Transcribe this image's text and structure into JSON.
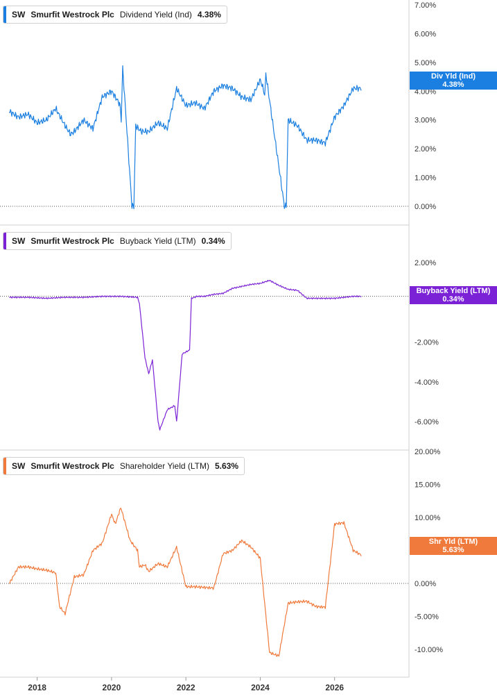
{
  "header": {
    "ticker": "SW",
    "company": "Smurfit Westrock Plc"
  },
  "x_axis": {
    "ticks": [
      "2018",
      "2020",
      "2022",
      "2024",
      "2026"
    ]
  },
  "panels": [
    {
      "metric": "Dividend Yield (Ind)",
      "value": "4.38%",
      "tag_label": "Div Yld (Ind)",
      "tag_value": "4.38%",
      "color": "#1a7fe0"
    },
    {
      "metric": "Buyback Yield (LTM)",
      "value": "0.34%",
      "tag_label": "Buyback Yield (LTM)",
      "tag_value": "0.34%",
      "color": "#7b22d6"
    },
    {
      "metric": "Shareholder Yield (LTM)",
      "value": "5.63%",
      "tag_label": "Shr Yld (LTM)",
      "tag_value": "5.63%",
      "color": "#f07a3c"
    }
  ],
  "chart_data": [
    {
      "type": "line",
      "series": [
        {
          "name": "Dividend Yield (Ind)"
        }
      ],
      "unit": "%",
      "ylim": [
        0,
        7
      ],
      "yticks": [
        "0.00%",
        "1.00%",
        "2.00%",
        "3.00%",
        "4.00%",
        "5.00%",
        "6.00%",
        "7.00%"
      ],
      "x": [
        2017.25,
        2017.5,
        2017.75,
        2018.0,
        2018.25,
        2018.5,
        2018.75,
        2018.9,
        2019.0,
        2019.25,
        2019.5,
        2019.75,
        2020.0,
        2020.2,
        2020.23,
        2020.26,
        2020.3,
        2020.55,
        2020.6,
        2020.65,
        2020.8,
        2021.0,
        2021.25,
        2021.5,
        2021.75,
        2022.0,
        2022.25,
        2022.5,
        2022.75,
        2023.0,
        2023.25,
        2023.5,
        2023.75,
        2024.0,
        2024.1,
        2024.12,
        2024.15,
        2024.65,
        2024.7,
        2024.75,
        2025.0,
        2025.25,
        2025.5,
        2025.75,
        2026.0,
        2026.25,
        2026.5,
        2026.75,
        2027.0,
        2027.25,
        2027.5,
        2027.75,
        2028.0,
        2028.25,
        2028.5,
        2028.75
      ],
      "y": [
        3.3,
        3.1,
        3.2,
        2.9,
        3.0,
        3.4,
        2.8,
        2.5,
        2.6,
        3.0,
        2.7,
        3.8,
        4.0,
        3.6,
        3.5,
        3.0,
        4.8,
        0.0,
        0.0,
        2.8,
        2.6,
        2.6,
        2.9,
        2.7,
        4.1,
        3.5,
        3.6,
        3.4,
        4.0,
        4.2,
        4.1,
        3.8,
        3.7,
        4.4,
        4.0,
        3.8,
        4.6,
        0.0,
        0.0,
        3.0,
        2.8,
        2.3,
        2.3,
        2.2,
        3.1,
        3.5,
        4.1,
        4.1,
        3.9,
        4.3,
        4.3,
        4.3,
        4.3,
        4.4,
        4.38,
        4.38
      ]
    },
    {
      "type": "line",
      "series": [
        {
          "name": "Buyback Yield (LTM)"
        }
      ],
      "unit": "%",
      "ylim": [
        -7.5,
        2.5
      ],
      "yticks": [
        "2.00%",
        "-2.00%",
        "-4.00%",
        "-6.00%"
      ],
      "x": [
        2017.25,
        2017.75,
        2018.25,
        2018.75,
        2019.25,
        2019.75,
        2020.25,
        2020.7,
        2020.75,
        2020.9,
        2021.0,
        2021.1,
        2021.25,
        2021.3,
        2021.5,
        2021.7,
        2021.75,
        2021.9,
        2022.0,
        2022.1,
        2022.15,
        2022.3,
        2022.5,
        2022.75,
        2023.0,
        2023.25,
        2023.5,
        2023.75,
        2024.0,
        2024.25,
        2024.5,
        2024.75,
        2025.0,
        2025.25,
        2025.5,
        2025.75,
        2026.0,
        2026.25,
        2026.5,
        2026.75,
        2027.0,
        2027.25,
        2027.5,
        2027.75,
        2028.0,
        2028.25,
        2028.5,
        2028.75
      ],
      "y": [
        0.25,
        0.25,
        0.2,
        0.25,
        0.25,
        0.3,
        0.3,
        0.25,
        -0.05,
        -2.8,
        -3.6,
        -2.9,
        -6.0,
        -6.4,
        -5.4,
        -5.2,
        -6.0,
        -2.6,
        -2.5,
        -2.4,
        0.2,
        0.3,
        0.3,
        0.4,
        0.45,
        0.7,
        0.8,
        0.9,
        0.95,
        1.1,
        0.85,
        0.65,
        0.6,
        0.2,
        0.2,
        0.2,
        0.2,
        0.25,
        0.3,
        0.3,
        0.35,
        0.34,
        0.34,
        0.34,
        0.34,
        0.34,
        0.34,
        0.34
      ]
    },
    {
      "type": "line",
      "series": [
        {
          "name": "Shareholder Yield (LTM)"
        }
      ],
      "unit": "%",
      "ylim": [
        -15,
        20
      ],
      "yticks": [
        "20.00%",
        "15.00%",
        "10.00%",
        "5.00%",
        "0.00%",
        "-5.00%",
        "-10.00%"
      ],
      "x": [
        2017.25,
        2017.5,
        2017.75,
        2018.0,
        2018.25,
        2018.5,
        2018.6,
        2018.75,
        2019.0,
        2019.25,
        2019.5,
        2019.75,
        2020.0,
        2020.1,
        2020.25,
        2020.5,
        2020.7,
        2020.75,
        2020.9,
        2021.0,
        2021.25,
        2021.5,
        2021.75,
        2022.0,
        2022.25,
        2022.5,
        2022.75,
        2023.0,
        2023.25,
        2023.5,
        2023.75,
        2024.0,
        2024.25,
        2024.5,
        2024.75,
        2025.0,
        2025.25,
        2025.5,
        2025.75,
        2026.0,
        2026.25,
        2026.5,
        2026.75,
        2027.0,
        2027.25,
        2027.5,
        2027.75,
        2028.0,
        2028.25,
        2028.5,
        2028.75
      ],
      "y": [
        0.0,
        2.5,
        2.5,
        2.2,
        2.0,
        1.6,
        -3.5,
        -4.6,
        1.0,
        1.3,
        5.0,
        6.1,
        10.5,
        9.0,
        11.5,
        6.5,
        5.0,
        2.5,
        2.8,
        1.8,
        3.0,
        2.5,
        5.5,
        -0.5,
        -0.5,
        -0.6,
        -0.7,
        4.5,
        5.0,
        6.5,
        5.5,
        3.8,
        -10.5,
        -11.0,
        -3.0,
        -2.8,
        -2.7,
        -3.5,
        -3.6,
        9.0,
        9.2,
        5.0,
        4.2,
        5.8,
        6.0,
        5.8,
        5.7,
        5.63,
        5.63,
        5.63,
        5.63
      ]
    }
  ]
}
